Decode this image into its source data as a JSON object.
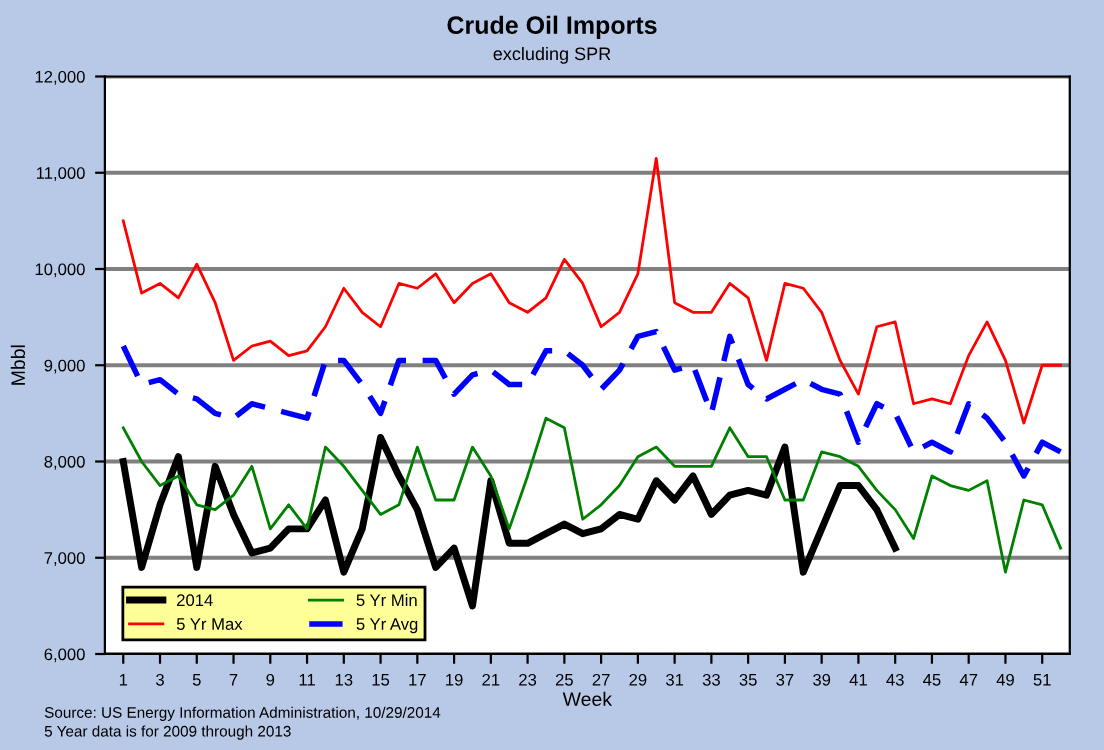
{
  "chart_data": {
    "type": "line",
    "title": "Crude Oil Imports",
    "subtitle": "excluding SPR",
    "xlabel": "Week",
    "ylabel": "Mbbl",
    "x": [
      1,
      2,
      3,
      4,
      5,
      6,
      7,
      8,
      9,
      10,
      11,
      12,
      13,
      14,
      15,
      16,
      17,
      18,
      19,
      20,
      21,
      22,
      23,
      24,
      25,
      26,
      27,
      28,
      29,
      30,
      31,
      32,
      33,
      34,
      35,
      36,
      37,
      38,
      39,
      40,
      41,
      42,
      43,
      44,
      45,
      46,
      47,
      48,
      49,
      50,
      51,
      52
    ],
    "series": [
      {
        "name": "2014",
        "color": "#000000",
        "line_style": "solid",
        "values": [
          8000,
          6900,
          7550,
          8050,
          6900,
          7950,
          7450,
          7050,
          7100,
          7300,
          7300,
          7600,
          6850,
          7300,
          8250,
          7850,
          7500,
          6900,
          7100,
          6500,
          7800,
          7150,
          7150,
          7250,
          7350,
          7250,
          7300,
          7450,
          7400,
          7800,
          7600,
          7850,
          7450,
          7650,
          7700,
          7650,
          8150,
          6850,
          7300,
          7750,
          7750,
          7500,
          7100,
          null,
          null,
          null,
          null,
          null,
          null,
          null,
          null,
          null
        ]
      },
      {
        "name": "5 Yr Max",
        "color": "#ff0000",
        "line_style": "solid",
        "values": [
          10500,
          9750,
          9850,
          9700,
          10050,
          9650,
          9050,
          9200,
          9250,
          9100,
          9150,
          9400,
          9800,
          9550,
          9400,
          9850,
          9800,
          9950,
          9650,
          9850,
          9950,
          9650,
          9550,
          9700,
          10100,
          9850,
          9400,
          9550,
          9950,
          11150,
          9650,
          9550,
          9550,
          9850,
          9700,
          9050,
          9850,
          9800,
          9550,
          9050,
          8700,
          9400,
          9450,
          8600,
          8650,
          8600,
          9100,
          9450,
          9050,
          8400,
          9000,
          9000
        ]
      },
      {
        "name": "5 Yr Min",
        "color": "#008000",
        "line_style": "solid",
        "values": [
          8350,
          8000,
          7750,
          7850,
          7550,
          7500,
          7650,
          7950,
          7300,
          7550,
          7300,
          8150,
          7950,
          7700,
          7450,
          7550,
          8150,
          7600,
          7600,
          8150,
          7850,
          7300,
          7850,
          8450,
          8350,
          7400,
          7550,
          7750,
          8050,
          8150,
          7950,
          7950,
          7950,
          8350,
          8050,
          8050,
          7600,
          7600,
          8100,
          8050,
          7950,
          7700,
          7500,
          7200,
          7850,
          7750,
          7700,
          7800,
          6850,
          7600,
          7550,
          7100
        ]
      },
      {
        "name": "5 Yr Avg",
        "color": "#0000ff",
        "line_style": "dashed",
        "values": [
          9200,
          8800,
          8850,
          8700,
          8650,
          8500,
          8450,
          8600,
          8550,
          8500,
          8450,
          9050,
          9050,
          8800,
          8500,
          9050,
          9050,
          9050,
          8700,
          8900,
          8950,
          8800,
          8800,
          9150,
          9150,
          9000,
          8750,
          8950,
          9300,
          9350,
          8950,
          9000,
          8500,
          9300,
          8800,
          8650,
          8750,
          8850,
          8750,
          8700,
          8200,
          8600,
          8500,
          8100,
          8200,
          8100,
          8600,
          8450,
          8200,
          7850,
          8200,
          8100
        ]
      }
    ],
    "xlim": [
      0,
      52.5
    ],
    "xticks": [
      1,
      3,
      5,
      7,
      9,
      11,
      13,
      15,
      17,
      19,
      21,
      23,
      25,
      27,
      29,
      31,
      33,
      35,
      37,
      39,
      41,
      43,
      45,
      47,
      49,
      51
    ],
    "ylim": [
      6000,
      12000
    ],
    "yticks": [
      {
        "value": 6000,
        "label": "6,000"
      },
      {
        "value": 7000,
        "label": "7,000"
      },
      {
        "value": 8000,
        "label": "8,000"
      },
      {
        "value": 9000,
        "label": "9,000"
      },
      {
        "value": 10000,
        "label": "10,000"
      },
      {
        "value": 11000,
        "label": "11,000"
      },
      {
        "value": 12000,
        "label": "12,000"
      }
    ],
    "grid": "y",
    "legend": "bottom left",
    "annotations": [
      "Source: US Energy Information Administration, 10/29/2014",
      "5 Year data is for 2009 through 2013"
    ]
  }
}
